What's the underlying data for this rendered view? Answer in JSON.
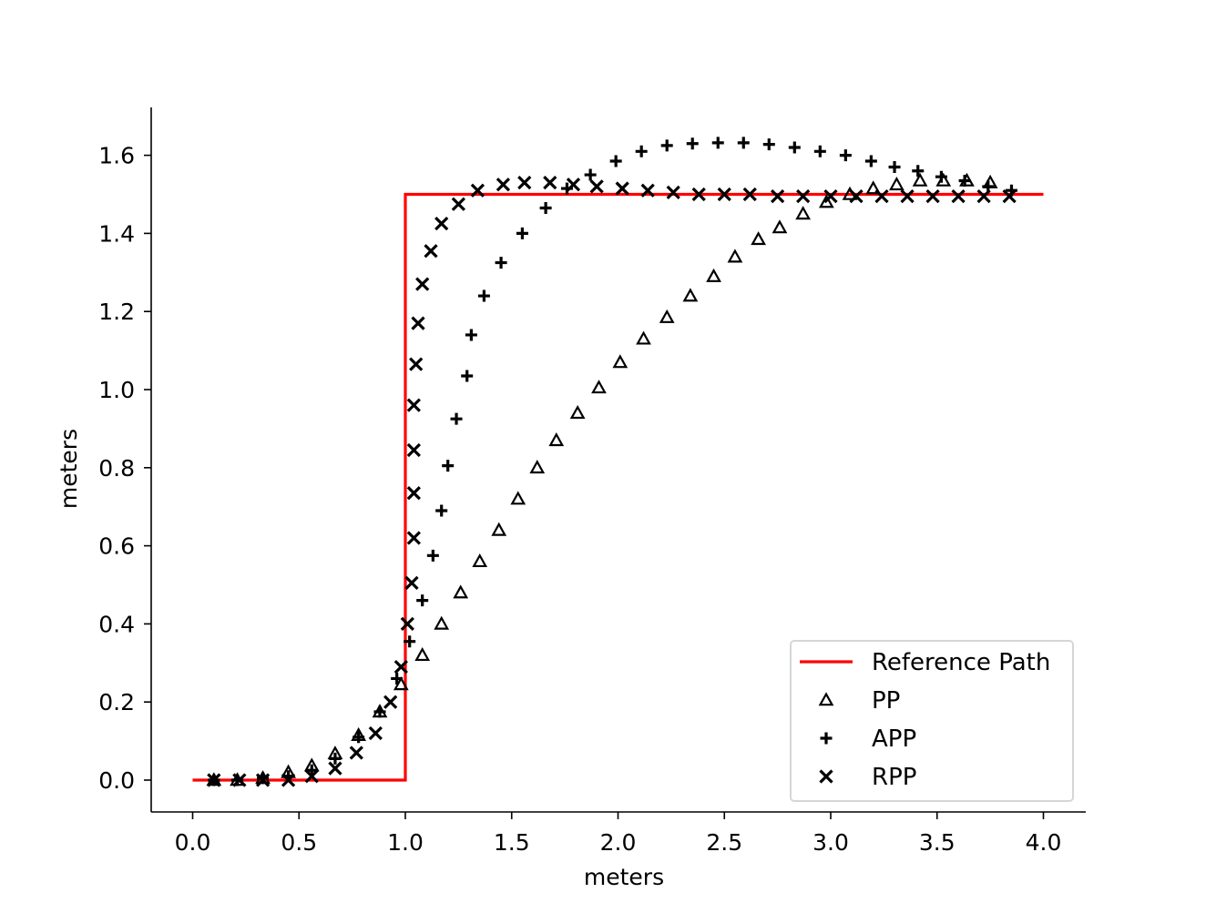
{
  "chart_data": {
    "type": "scatter",
    "title": "",
    "xlabel": "meters",
    "ylabel": "meters",
    "xlim": [
      -0.2,
      4.2
    ],
    "ylim": [
      -0.08,
      1.72
    ],
    "xticks": [
      0.0,
      0.5,
      1.0,
      1.5,
      2.0,
      2.5,
      3.0,
      3.5,
      4.0
    ],
    "xtick_labels": [
      "0.0",
      "0.5",
      "1.0",
      "1.5",
      "2.0",
      "2.5",
      "3.0",
      "3.5",
      "4.0"
    ],
    "yticks": [
      0.0,
      0.2,
      0.4,
      0.6,
      0.8,
      1.0,
      1.2,
      1.4,
      1.6
    ],
    "ytick_labels": [
      "0.0",
      "0.2",
      "0.4",
      "0.6",
      "0.8",
      "1.0",
      "1.2",
      "1.4",
      "1.6"
    ],
    "grid": false,
    "legend_position": "lower-right",
    "series": [
      {
        "name": "Reference Path",
        "kind": "line",
        "color": "#ff0000",
        "x": [
          0.0,
          1.0,
          1.0,
          4.0
        ],
        "y": [
          0.0,
          0.0,
          1.5,
          1.5
        ]
      },
      {
        "name": "PP",
        "kind": "marker",
        "marker": "triangle",
        "color": "#000000",
        "x": [
          0.1,
          0.21,
          0.33,
          0.45,
          0.56,
          0.67,
          0.78,
          0.88,
          0.98,
          1.08,
          1.17,
          1.26,
          1.35,
          1.44,
          1.53,
          1.62,
          1.71,
          1.81,
          1.91,
          2.01,
          2.12,
          2.23,
          2.34,
          2.45,
          2.55,
          2.66,
          2.76,
          2.87,
          2.98,
          3.09,
          3.2,
          3.31,
          3.42,
          3.53,
          3.64,
          3.75
        ],
        "y": [
          0.0,
          0.0,
          0.005,
          0.02,
          0.037,
          0.068,
          0.115,
          0.175,
          0.245,
          0.32,
          0.4,
          0.48,
          0.56,
          0.64,
          0.72,
          0.8,
          0.87,
          0.94,
          1.005,
          1.07,
          1.13,
          1.185,
          1.24,
          1.29,
          1.34,
          1.385,
          1.415,
          1.45,
          1.48,
          1.5,
          1.515,
          1.525,
          1.535,
          1.535,
          1.535,
          1.53
        ]
      },
      {
        "name": "APP",
        "kind": "marker",
        "marker": "plus",
        "color": "#000000",
        "x": [
          0.1,
          0.21,
          0.33,
          0.45,
          0.56,
          0.67,
          0.78,
          0.88,
          0.96,
          1.02,
          1.08,
          1.13,
          1.17,
          1.2,
          1.24,
          1.29,
          1.31,
          1.37,
          1.45,
          1.55,
          1.66,
          1.76,
          1.87,
          1.99,
          2.11,
          2.23,
          2.35,
          2.47,
          2.59,
          2.71,
          2.83,
          2.95,
          3.07,
          3.19,
          3.3,
          3.41,
          3.52,
          3.63,
          3.74,
          3.85
        ],
        "y": [
          0.0,
          0.0,
          0.005,
          0.01,
          0.025,
          0.055,
          0.11,
          0.175,
          0.26,
          0.355,
          0.46,
          0.575,
          0.69,
          0.805,
          0.925,
          1.035,
          1.14,
          1.24,
          1.325,
          1.4,
          1.465,
          1.515,
          1.55,
          1.585,
          1.61,
          1.625,
          1.63,
          1.632,
          1.632,
          1.628,
          1.62,
          1.61,
          1.6,
          1.585,
          1.57,
          1.56,
          1.545,
          1.535,
          1.52,
          1.51
        ]
      },
      {
        "name": "RPP",
        "kind": "marker",
        "marker": "x",
        "color": "#000000",
        "x": [
          0.1,
          0.22,
          0.33,
          0.45,
          0.56,
          0.67,
          0.77,
          0.86,
          0.93,
          0.98,
          1.01,
          1.03,
          1.04,
          1.04,
          1.04,
          1.04,
          1.05,
          1.06,
          1.08,
          1.12,
          1.17,
          1.25,
          1.34,
          1.46,
          1.56,
          1.68,
          1.79,
          1.9,
          2.02,
          2.14,
          2.26,
          2.38,
          2.5,
          2.62,
          2.75,
          2.87,
          3.0,
          3.12,
          3.24,
          3.36,
          3.48,
          3.6,
          3.72,
          3.84
        ],
        "y": [
          0.0,
          0.0,
          0.0,
          0.0,
          0.01,
          0.03,
          0.07,
          0.12,
          0.2,
          0.29,
          0.4,
          0.505,
          0.62,
          0.735,
          0.845,
          0.96,
          1.065,
          1.17,
          1.27,
          1.355,
          1.425,
          1.475,
          1.51,
          1.525,
          1.53,
          1.53,
          1.525,
          1.52,
          1.515,
          1.51,
          1.505,
          1.5,
          1.5,
          1.5,
          1.495,
          1.495,
          1.495,
          1.495,
          1.495,
          1.495,
          1.495,
          1.495,
          1.495,
          1.495
        ]
      }
    ]
  }
}
